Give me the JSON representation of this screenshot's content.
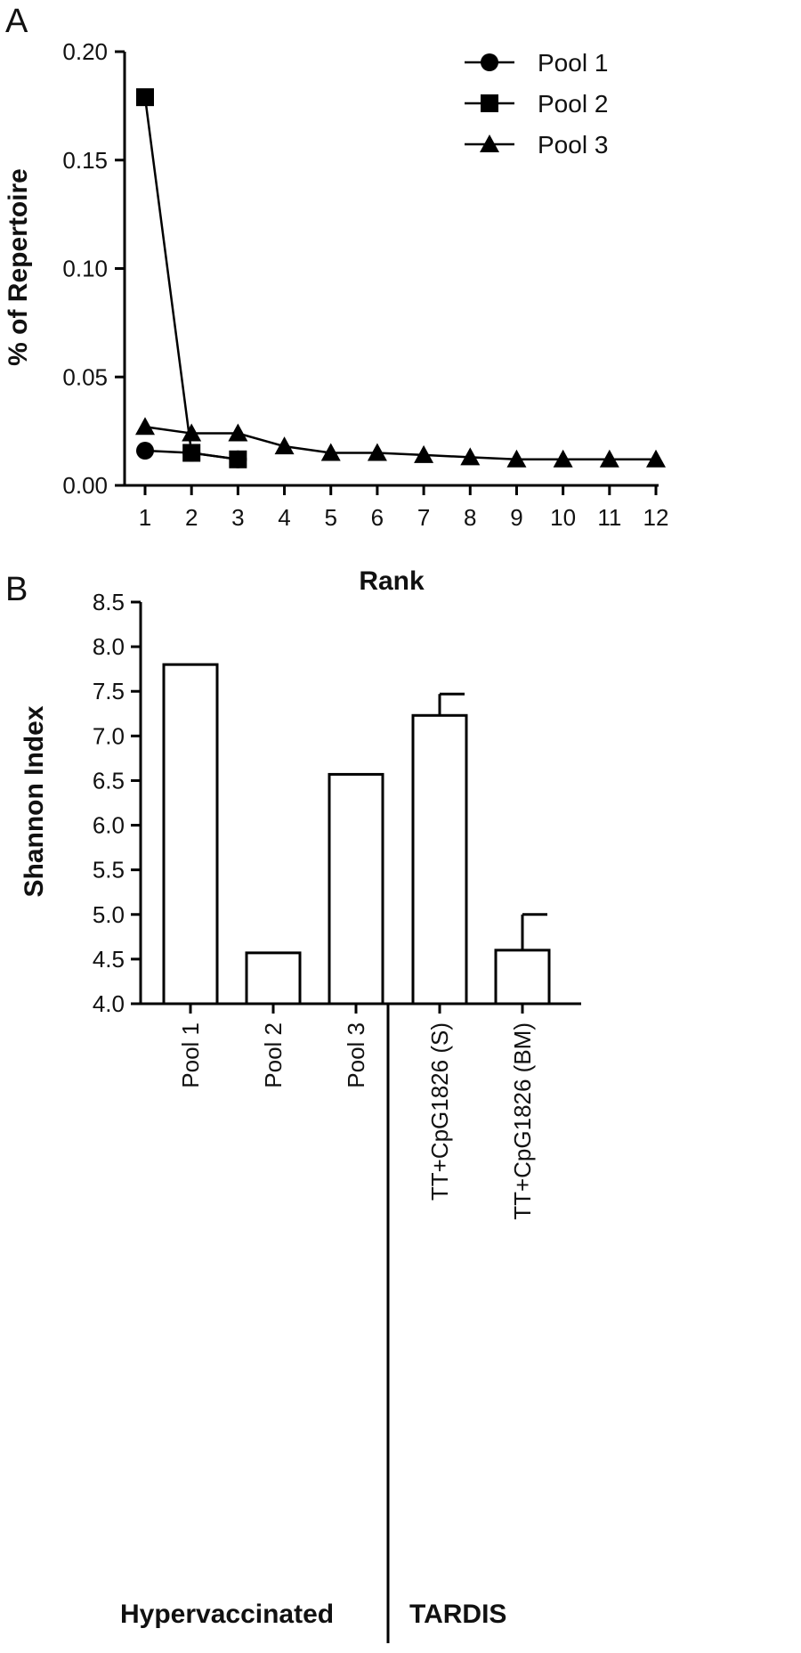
{
  "chart_data": [
    {
      "panel": "A",
      "type": "line",
      "xlabel": "Rank",
      "ylabel": "% of Repertoire",
      "xlim": [
        1,
        12
      ],
      "ylim": [
        0,
        0.2
      ],
      "x_ticks": [
        1,
        2,
        3,
        4,
        5,
        6,
        7,
        8,
        9,
        10,
        11,
        12
      ],
      "y_ticks": [
        "0.00",
        "0.05",
        "0.10",
        "0.15",
        "0.20"
      ],
      "legend_position": "top-right",
      "series": [
        {
          "name": "Pool 1",
          "marker": "circle",
          "x": [
            1,
            2,
            3
          ],
          "values": [
            0.016,
            0.015,
            0.012
          ]
        },
        {
          "name": "Pool 2",
          "marker": "square",
          "x": [
            1,
            2,
            3
          ],
          "values": [
            0.179,
            0.015,
            0.012
          ]
        },
        {
          "name": "Pool 3",
          "marker": "triangle",
          "x": [
            1,
            2,
            3,
            4,
            5,
            6,
            7,
            8,
            9,
            10,
            11,
            12
          ],
          "values": [
            0.027,
            0.024,
            0.024,
            0.018,
            0.015,
            0.015,
            0.014,
            0.013,
            0.012,
            0.012,
            0.012,
            0.012
          ]
        }
      ]
    },
    {
      "panel": "B",
      "type": "bar",
      "ylabel": "Shannon Index",
      "ylim": [
        4.0,
        8.5
      ],
      "y_ticks": [
        "4.0",
        "4.5",
        "5.0",
        "5.5",
        "6.0",
        "6.5",
        "7.0",
        "7.5",
        "8.0",
        "8.5"
      ],
      "categories": [
        "Pool 1",
        "Pool 2",
        "Pool 3",
        "TT+CpG1826 (S)",
        "TT+CpG1826 (BM)"
      ],
      "values": [
        7.8,
        4.57,
        6.57,
        7.23,
        4.6
      ],
      "error_upper": [
        null,
        null,
        null,
        7.47,
        5.0
      ],
      "groups": [
        {
          "label": "Hypervaccinated",
          "categories": [
            "Pool 1",
            "Pool 2",
            "Pool 3"
          ]
        },
        {
          "label": "TARDIS",
          "categories": [
            "TT+CpG1826 (S)",
            "TT+CpG1826 (BM)"
          ]
        }
      ]
    }
  ]
}
